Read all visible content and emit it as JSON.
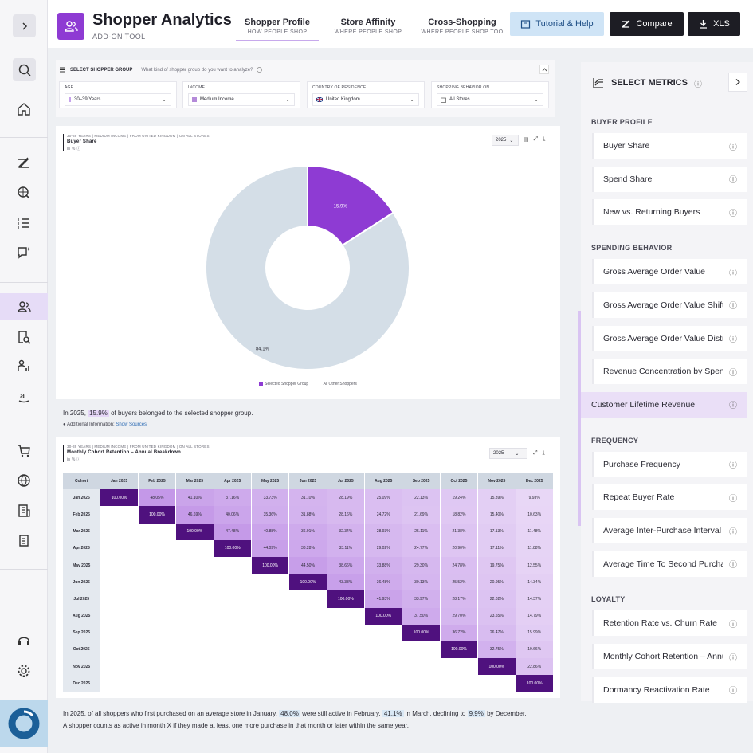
{
  "app": {
    "title": "Shopper Analytics",
    "subtitle": "ADD-ON TOOL"
  },
  "nav": {
    "tabs": [
      {
        "label": "Shopper Profile",
        "sub": "HOW PEOPLE SHOP"
      },
      {
        "label": "Store Affinity",
        "sub": "WHERE PEOPLE SHOP"
      },
      {
        "label": "Cross-Shopping",
        "sub": "WHERE PEOPLE SHOP TOO"
      }
    ],
    "help_label": "Tutorial & Help",
    "compare_label": "Compare",
    "xls_label": "XLS"
  },
  "filters": {
    "title": "SELECT SHOPPER GROUP",
    "question": "What kind of shopper group do you want to analyze?",
    "groups": [
      {
        "label": "AGE",
        "value": "30–39 Years"
      },
      {
        "label": "INCOME",
        "value": "Medium Income"
      },
      {
        "label": "COUNTRY OF RESIDENCE",
        "value": "United Kingdom"
      },
      {
        "label": "SHOPPING BEHAVIOR ON",
        "value": "All Stores"
      }
    ]
  },
  "buyer_share": {
    "context": "30-39 YEARS | MEDIUM INCOME | FROM UNITED KINGDOM | ON ALL STORES",
    "title": "Buyer Share",
    "unit": "in %",
    "year": "2025",
    "legend": [
      "Selected Shopper Group",
      "All Other Shoppers"
    ],
    "slice_labels": [
      "15.9%",
      "84.1%"
    ]
  },
  "chart_data": [
    {
      "type": "pie",
      "title": "Buyer Share",
      "labels": [
        "Selected Shopper Group",
        "All Other Shoppers"
      ],
      "values": [
        15.9,
        84.1
      ],
      "colors": [
        "#8e3bd3",
        "#d4dee7"
      ],
      "donut": true
    }
  ],
  "note1": {
    "prefix": "In 2025,",
    "value": "15.9%",
    "suffix": "of buyers belonged to the selected shopper group.",
    "additional": "Additional Information:",
    "link": "Show Sources"
  },
  "cohort": {
    "context": "30-39 YEARS | MEDIUM INCOME | FROM UNITED KINGDOM | ON ALL STORES",
    "title": "Monthly Cohort Retention – Annual Breakdown",
    "unit": "in %",
    "year": "2025",
    "headers": [
      "Cohort",
      "Jan 2025",
      "Feb 2025",
      "Mar 2025",
      "Apr 2025",
      "May 2025",
      "Jun 2025",
      "Jul 2025",
      "Aug 2025",
      "Sep 2025",
      "Oct 2025",
      "Nov 2025",
      "Dec 2025"
    ],
    "rows": [
      {
        "cohort": "Jan 2025",
        "values": [
          "100.00%",
          "48.05%",
          "41.10%",
          "37.16%",
          "33.73%",
          "31.10%",
          "28.19%",
          "25.09%",
          "22.13%",
          "19.24%",
          "15.39%",
          "9.93%"
        ]
      },
      {
        "cohort": "Feb 2025",
        "values": [
          "",
          "100.00%",
          "46.69%",
          "40.06%",
          "35.36%",
          "31.88%",
          "28.16%",
          "24.72%",
          "21.69%",
          "18.82%",
          "15.40%",
          "10.63%"
        ]
      },
      {
        "cohort": "Mar 2025",
        "values": [
          "",
          "",
          "100.00%",
          "47.48%",
          "40.88%",
          "36.91%",
          "32.34%",
          "28.93%",
          "25.11%",
          "21.38%",
          "17.13%",
          "11.48%"
        ]
      },
      {
        "cohort": "Apr 2025",
        "values": [
          "",
          "",
          "",
          "100.00%",
          "44.09%",
          "38.28%",
          "33.11%",
          "29.02%",
          "24.77%",
          "20.90%",
          "17.11%",
          "11.88%"
        ]
      },
      {
        "cohort": "May 2025",
        "values": [
          "",
          "",
          "",
          "",
          "100.00%",
          "44.50%",
          "38.66%",
          "33.88%",
          "29.30%",
          "24.78%",
          "19.75%",
          "12.55%"
        ]
      },
      {
        "cohort": "Jun 2025",
        "values": [
          "",
          "",
          "",
          "",
          "",
          "100.00%",
          "43.38%",
          "36.48%",
          "30.13%",
          "25.52%",
          "20.95%",
          "14.34%"
        ]
      },
      {
        "cohort": "Jul 2025",
        "values": [
          "",
          "",
          "",
          "",
          "",
          "",
          "100.00%",
          "41.93%",
          "33.97%",
          "28.17%",
          "22.02%",
          "14.37%"
        ]
      },
      {
        "cohort": "Aug 2025",
        "values": [
          "",
          "",
          "",
          "",
          "",
          "",
          "",
          "100.00%",
          "37.50%",
          "29.70%",
          "23.55%",
          "14.79%"
        ]
      },
      {
        "cohort": "Sep 2025",
        "values": [
          "",
          "",
          "",
          "",
          "",
          "",
          "",
          "",
          "100.00%",
          "36.72%",
          "26.47%",
          "15.99%"
        ]
      },
      {
        "cohort": "Oct 2025",
        "values": [
          "",
          "",
          "",
          "",
          "",
          "",
          "",
          "",
          "",
          "100.00%",
          "32.75%",
          "19.66%"
        ]
      },
      {
        "cohort": "Nov 2025",
        "values": [
          "",
          "",
          "",
          "",
          "",
          "",
          "",
          "",
          "",
          "",
          "100.00%",
          "22.86%"
        ]
      },
      {
        "cohort": "Dec 2025",
        "values": [
          "",
          "",
          "",
          "",
          "",
          "",
          "",
          "",
          "",
          "",
          "",
          "100.00%"
        ]
      }
    ]
  },
  "note2": {
    "line1_a": "In 2025, of all shoppers who first purchased on an average store in January,",
    "v1": "48.0%",
    "line1_b": "were still active in February,",
    "v2": "41.1%",
    "line1_c": "in March, declining to",
    "v3": "9.9%",
    "line1_d": "by December.",
    "line2": "A shopper counts as active in month X if they made at least one more purchase in that month or later within the same year."
  },
  "metrics": {
    "title": "SELECT METRICS",
    "sections": [
      {
        "label": "BUYER PROFILE",
        "items": [
          "Buyer Share",
          "Spend Share",
          "New vs. Returning Buyers"
        ]
      },
      {
        "label": "SPENDING BEHAVIOR",
        "items": [
          "Gross Average Order Value",
          "Gross Average Order Value Shift",
          "Gross Average Order Value Distribution",
          "Revenue Concentration by Spender",
          "Customer Lifetime Revenue"
        ]
      },
      {
        "label": "FREQUENCY",
        "items": [
          "Purchase Frequency",
          "Repeat Buyer Rate",
          "Average Inter-Purchase Interval",
          "Average Time To Second Purchase"
        ]
      },
      {
        "label": "LOYALTY",
        "items": [
          "Retention Rate vs. Churn Rate",
          "Monthly Cohort Retention – Annual Breakdown",
          "Dormancy Reactivation Rate"
        ]
      }
    ],
    "active": "Customer Lifetime Revenue"
  },
  "colors": {
    "accent": "#8e3bd3",
    "pie_other": "#d4dee7",
    "dark_button": "#1d1d24",
    "help_button": "#cfe4f6"
  }
}
